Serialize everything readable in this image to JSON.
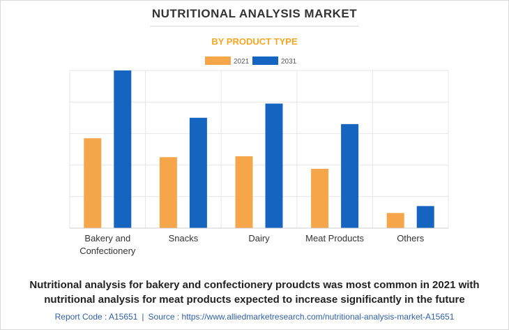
{
  "header": {
    "title": "NUTRITIONAL ANALYSIS MARKET",
    "subtitle": "BY PRODUCT TYPE"
  },
  "chart_data": {
    "type": "bar",
    "categories": [
      "Bakery and Confectionery",
      "Snacks",
      "Dairy",
      "Meat Products",
      "Others"
    ],
    "series": [
      {
        "name": "2021",
        "color": "#f5a54a",
        "values": [
          2.85,
          2.25,
          2.28,
          1.88,
          0.48
        ]
      },
      {
        "name": "2031",
        "color": "#1565c0",
        "values": [
          5.0,
          3.5,
          3.95,
          3.3,
          0.7
        ]
      }
    ],
    "ylim": [
      0,
      5
    ],
    "grid": true,
    "legend": "top-center"
  },
  "caption": "Nutritional analysis for bakery and confectionery proudcts was most common in 2021 with nutritional analysis for meat products expected to increase significantly in the future",
  "footer": {
    "report_code": "Report Code : A15651",
    "separator": "|",
    "source": "Source : https://www.alliedmarketresearch.com/nutritional-analysis-market-A15651"
  }
}
